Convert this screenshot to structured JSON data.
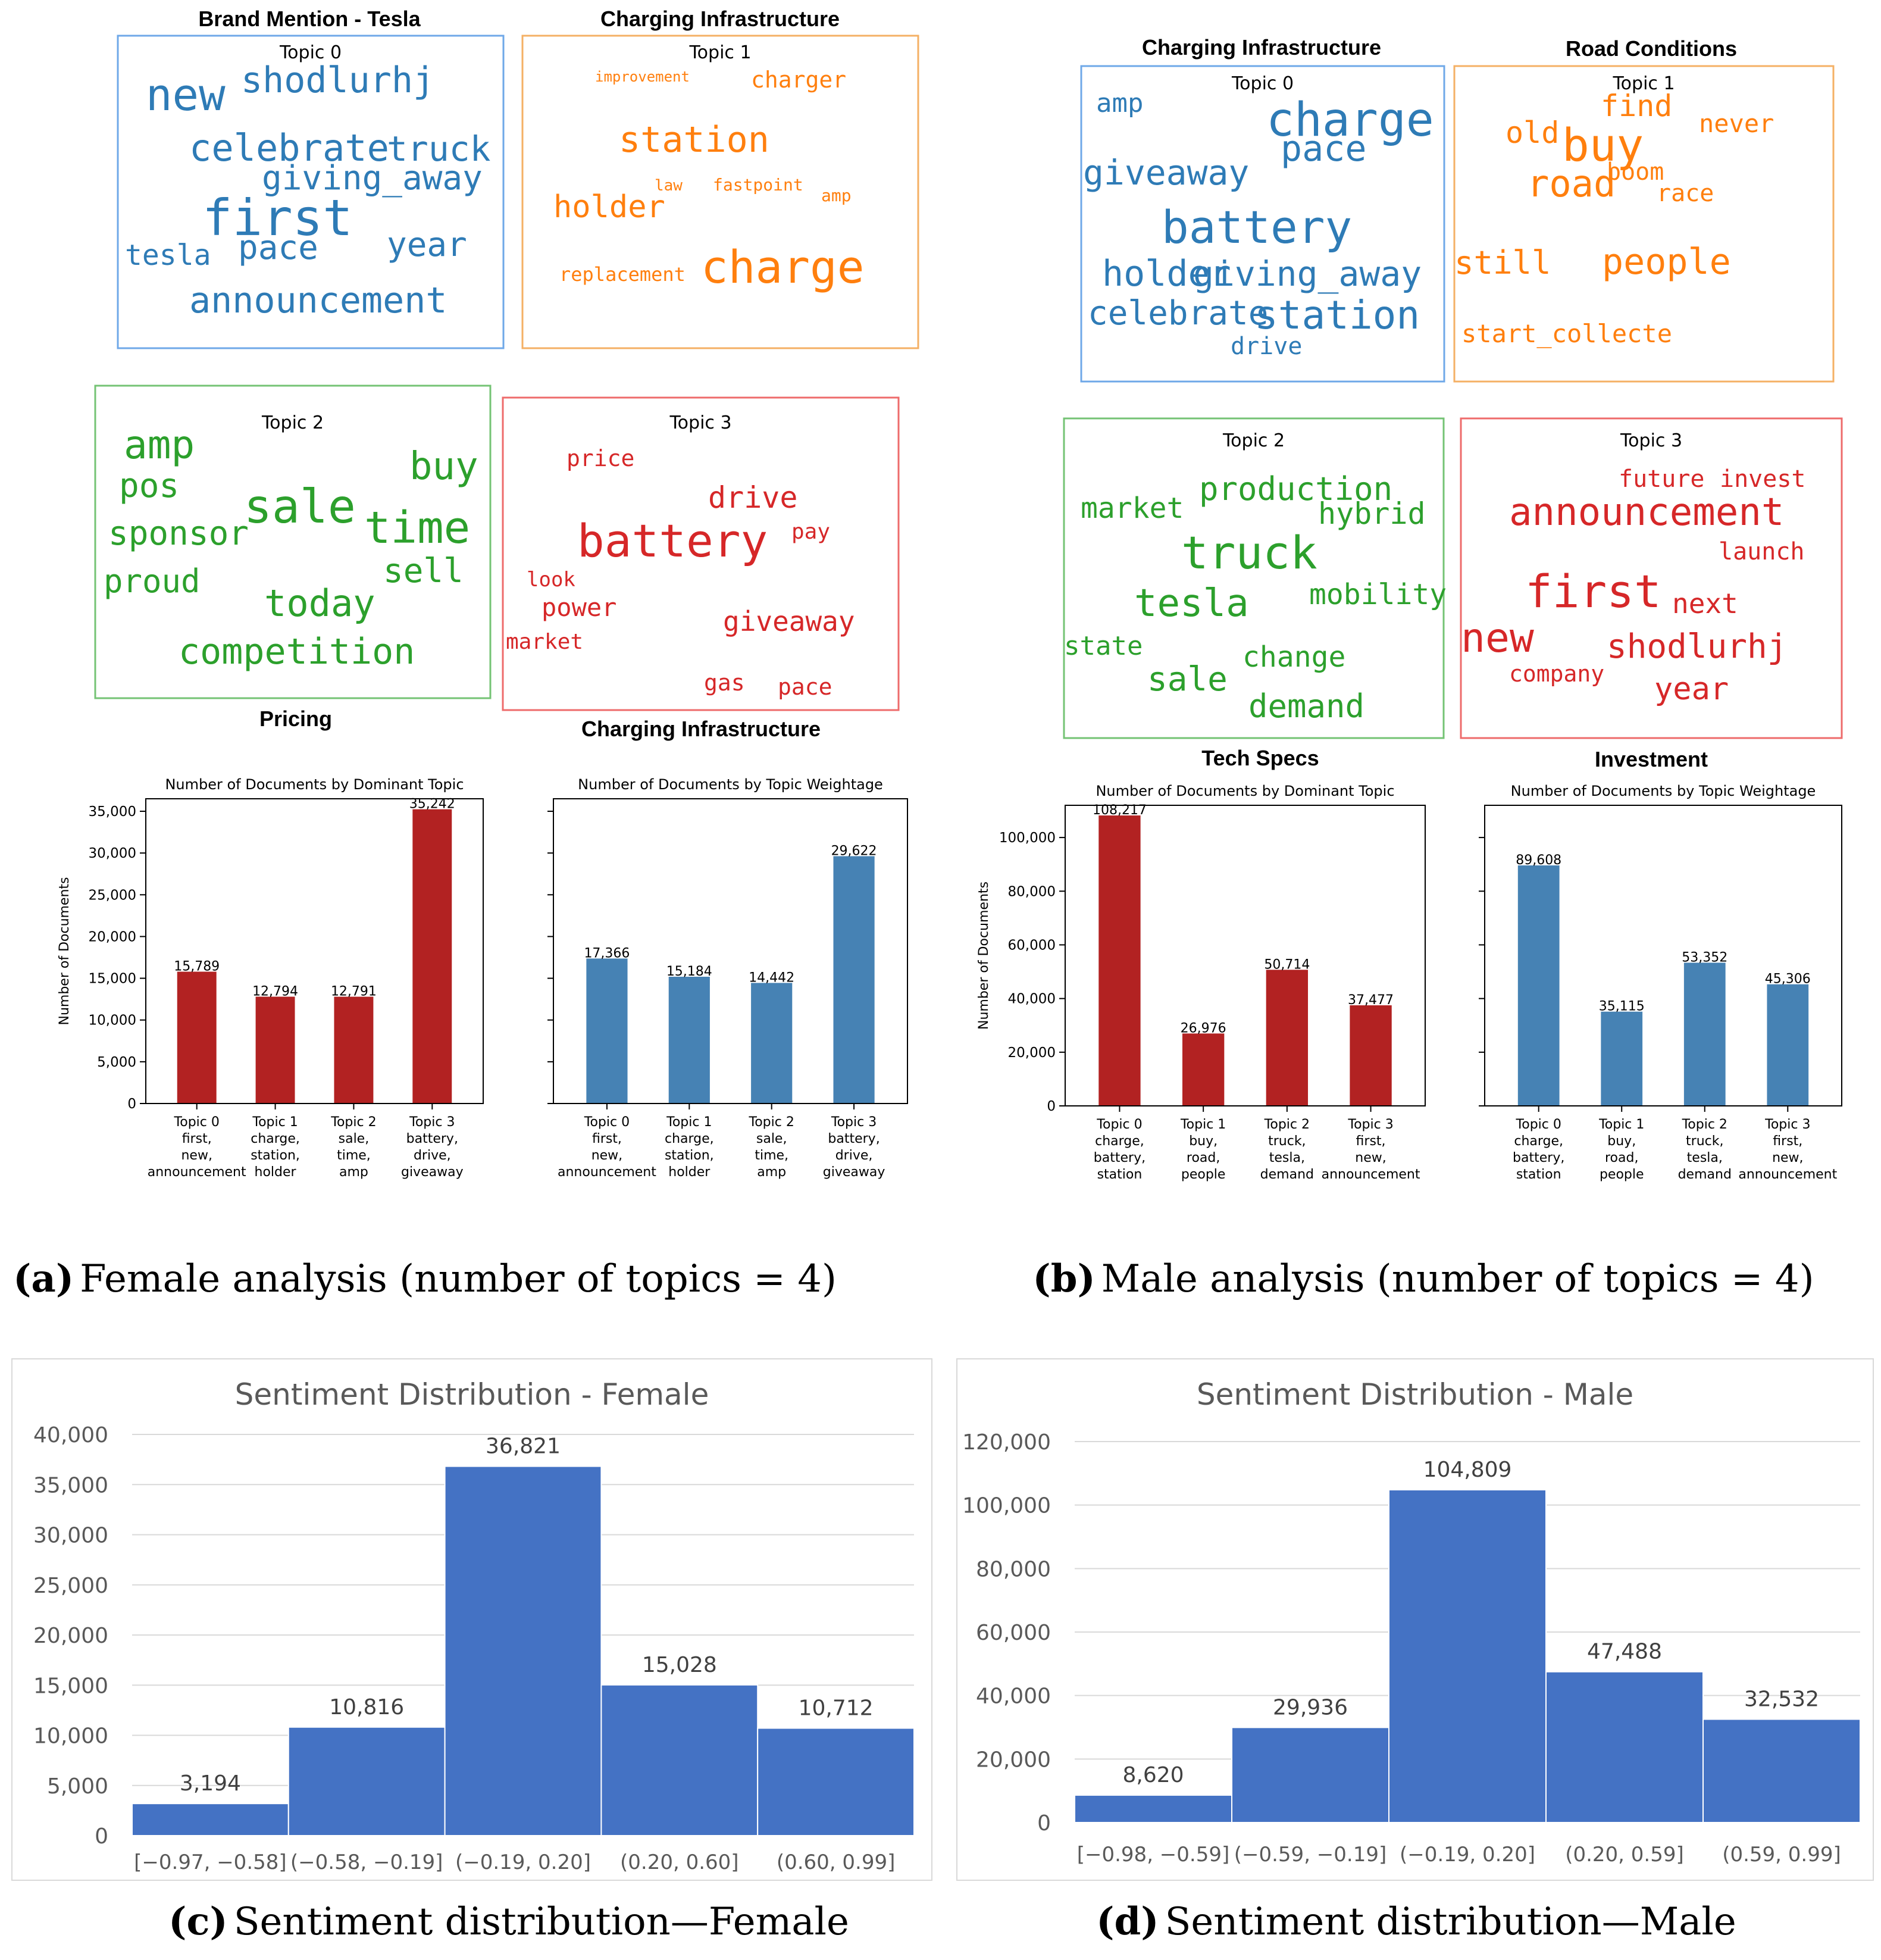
{
  "colors": {
    "blue": "#2e7bb6",
    "orange": "#ff7f0e",
    "green": "#2ca02c",
    "red": "#d62728",
    "bar_red": "#b22222",
    "bar_blue": "#4682b4",
    "excel_blue": "#4472c4",
    "excel_text": "#595959",
    "box_blue": "#6fa8e8",
    "box_orange": "#f4b065",
    "box_green": "#74c374",
    "box_red": "#ee6b6b"
  },
  "female": {
    "wordclouds": [
      {
        "title": "Brand Mention - Tesla",
        "topic": "Topic 0",
        "color": "blue",
        "words": [
          {
            "t": "new",
            "s": 74
          },
          {
            "t": "shodlurhj",
            "s": 60
          },
          {
            "t": "celebrate",
            "s": 62
          },
          {
            "t": "truck",
            "s": 58
          },
          {
            "t": "giving_away",
            "s": 56
          },
          {
            "t": "first",
            "s": 84
          },
          {
            "t": "tesla",
            "s": 48
          },
          {
            "t": "pace",
            "s": 56
          },
          {
            "t": "year",
            "s": 56
          },
          {
            "t": "announcement",
            "s": 60
          }
        ]
      },
      {
        "title": "Charging Infrastructure",
        "topic": "Topic 1",
        "color": "orange",
        "words": [
          {
            "t": "improvement",
            "s": 24
          },
          {
            "t": "charger",
            "s": 38
          },
          {
            "t": "station",
            "s": 60
          },
          {
            "t": "law",
            "s": 26
          },
          {
            "t": "fastpoint",
            "s": 28
          },
          {
            "t": "holder",
            "s": 52
          },
          {
            "t": "amp",
            "s": 28
          },
          {
            "t": "replacement",
            "s": 32
          },
          {
            "t": "charge",
            "s": 76
          }
        ]
      },
      {
        "title": "Pricing",
        "topic": "Topic 2",
        "color": "green",
        "words": [
          {
            "t": "amp",
            "s": 66
          },
          {
            "t": "pos",
            "s": 56
          },
          {
            "t": "sale",
            "s": 78
          },
          {
            "t": "buy",
            "s": 64
          },
          {
            "t": "sponsor",
            "s": 56
          },
          {
            "t": "time",
            "s": 74
          },
          {
            "t": "proud",
            "s": 54
          },
          {
            "t": "sell",
            "s": 56
          },
          {
            "t": "today",
            "s": 62
          },
          {
            "t": "competition",
            "s": 60
          }
        ]
      },
      {
        "title": "Charging Infrastructure",
        "topic": "Topic 3",
        "color": "red",
        "words": [
          {
            "t": "price",
            "s": 38
          },
          {
            "t": "drive",
            "s": 50
          },
          {
            "t": "battery",
            "s": 76
          },
          {
            "t": "pay",
            "s": 36
          },
          {
            "t": "look",
            "s": 34
          },
          {
            "t": "power",
            "s": 42
          },
          {
            "t": "giveaway",
            "s": 46
          },
          {
            "t": "market",
            "s": 36
          },
          {
            "t": "gas",
            "s": 38
          },
          {
            "t": "pace",
            "s": 38
          }
        ]
      }
    ],
    "bar_left": {
      "title": "Number of Documents by Dominant Topic",
      "ylabel": "Number of Documents",
      "ymax": 36500,
      "ticks": [
        0,
        5000,
        10000,
        15000,
        20000,
        25000,
        30000,
        35000
      ],
      "tick_labels": [
        "0",
        "5,000",
        "10,000",
        "15,000",
        "20,000",
        "25,000",
        "30,000",
        "35,000"
      ],
      "values": [
        15789,
        12794,
        12791,
        35242
      ],
      "value_labels": [
        "15,789",
        "12,794",
        "12,791",
        "35,242"
      ],
      "categories": [
        [
          "Topic 0",
          "first,",
          "new,",
          "announcement"
        ],
        [
          "Topic 1",
          "charge,",
          "station,",
          "holder"
        ],
        [
          "Topic 2",
          "sale,",
          "time,",
          "amp"
        ],
        [
          "Topic 3",
          "battery,",
          "drive,",
          "giveaway"
        ]
      ]
    },
    "bar_right": {
      "title": "Number of Documents by Topic Weightage",
      "ymax": 36500,
      "values": [
        17366,
        15184,
        14442,
        29622
      ],
      "value_labels": [
        "17,366",
        "15,184",
        "14,442",
        "29,622"
      ],
      "categories": [
        [
          "Topic 0",
          "first,",
          "new,",
          "announcement"
        ],
        [
          "Topic 1",
          "charge,",
          "station,",
          "holder"
        ],
        [
          "Topic 2",
          "sale,",
          "time,",
          "amp"
        ],
        [
          "Topic 3",
          "battery,",
          "drive,",
          "giveaway"
        ]
      ]
    },
    "caption_letter": "(a)",
    "caption": "Female analysis (number of topics = 4)"
  },
  "male": {
    "wordclouds": [
      {
        "title": "Charging Infrastructure",
        "topic": "Topic 0",
        "color": "blue",
        "words": [
          {
            "t": "amp",
            "s": 44
          },
          {
            "t": "charge",
            "s": 78
          },
          {
            "t": "pace",
            "s": 60
          },
          {
            "t": "giveaway",
            "s": 58
          },
          {
            "t": "battery",
            "s": 76
          },
          {
            "t": "holder",
            "s": 60
          },
          {
            "t": "giving_away",
            "s": 58
          },
          {
            "t": "celebrate",
            "s": 56
          },
          {
            "t": "station",
            "s": 66
          },
          {
            "t": "drive",
            "s": 40
          }
        ]
      },
      {
        "title": "Road Conditions",
        "topic": "Topic 1",
        "color": "orange",
        "words": [
          {
            "t": "find",
            "s": 50
          },
          {
            "t": "old",
            "s": 50
          },
          {
            "t": "buy",
            "s": 76
          },
          {
            "t": "never",
            "s": 42
          },
          {
            "t": "boom",
            "s": 40
          },
          {
            "t": "road",
            "s": 62
          },
          {
            "t": "race",
            "s": 40
          },
          {
            "t": "still",
            "s": 54
          },
          {
            "t": "people",
            "s": 60
          },
          {
            "t": "start_collecte",
            "s": 42
          }
        ]
      },
      {
        "title": "Tech Specs",
        "topic": "Topic 2",
        "color": "green",
        "words": [
          {
            "t": "market",
            "s": 48
          },
          {
            "t": "production",
            "s": 54
          },
          {
            "t": "hybrid",
            "s": 50
          },
          {
            "t": "truck",
            "s": 76
          },
          {
            "t": "tesla",
            "s": 64
          },
          {
            "t": "mobility",
            "s": 48
          },
          {
            "t": "state",
            "s": 44
          },
          {
            "t": "change",
            "s": 48
          },
          {
            "t": "sale",
            "s": 56
          },
          {
            "t": "demand",
            "s": 54
          }
        ]
      },
      {
        "title": "Investment",
        "topic": "Topic 3",
        "color": "red",
        "words": [
          {
            "t": "future",
            "s": 40
          },
          {
            "t": "invest",
            "s": 40
          },
          {
            "t": "announcement",
            "s": 64
          },
          {
            "t": "launch",
            "s": 40
          },
          {
            "t": "first",
            "s": 76
          },
          {
            "t": "next",
            "s": 46
          },
          {
            "t": "new",
            "s": 68
          },
          {
            "t": "shodlurhj",
            "s": 56
          },
          {
            "t": "company",
            "s": 38
          },
          {
            "t": "year",
            "s": 52
          }
        ]
      }
    ],
    "bar_left": {
      "title": "Number of Documents by Dominant Topic",
      "ylabel": "Number of Documents",
      "ymax": 112000,
      "ticks": [
        0,
        20000,
        40000,
        60000,
        80000,
        100000
      ],
      "tick_labels": [
        "0",
        "20,000",
        "40,000",
        "60,000",
        "80,000",
        "100,000"
      ],
      "values": [
        108217,
        26976,
        50714,
        37477
      ],
      "value_labels": [
        "108,217",
        "26,976",
        "50,714",
        "37,477"
      ],
      "categories": [
        [
          "Topic 0",
          "charge,",
          "battery,",
          "station"
        ],
        [
          "Topic 1",
          "buy,",
          "road,",
          "people"
        ],
        [
          "Topic 2",
          "truck,",
          "tesla,",
          "demand"
        ],
        [
          "Topic 3",
          "first,",
          "new,",
          "announcement"
        ]
      ]
    },
    "bar_right": {
      "title": "Number of Documents by Topic Weightage",
      "ymax": 112000,
      "values": [
        89608,
        35115,
        53352,
        45306
      ],
      "value_labels": [
        "89,608",
        "35,115",
        "53,352",
        "45,306"
      ],
      "categories": [
        [
          "Topic 0",
          "charge,",
          "battery,",
          "station"
        ],
        [
          "Topic 1",
          "buy,",
          "road,",
          "people"
        ],
        [
          "Topic 2",
          "truck,",
          "tesla,",
          "demand"
        ],
        [
          "Topic 3",
          "first,",
          "new,",
          "announcement"
        ]
      ]
    },
    "caption_letter": "(b)",
    "caption": "Male analysis (number of topics = 4)"
  },
  "chart_data": [
    {
      "type": "bar",
      "title": "Number of Documents by Dominant Topic",
      "panel": "Female",
      "ylabel": "Number of Documents",
      "categories": [
        "Topic 0 first, new, announcement",
        "Topic 1 charge, station, holder",
        "Topic 2 sale, time, amp",
        "Topic 3 battery, drive, giveaway"
      ],
      "values": [
        15789,
        12794,
        12791,
        35242
      ],
      "ylim": [
        0,
        36500
      ]
    },
    {
      "type": "bar",
      "title": "Number of Documents by Topic Weightage",
      "panel": "Female",
      "categories": [
        "Topic 0 first, new, announcement",
        "Topic 1 charge, station, holder",
        "Topic 2 sale, time, amp",
        "Topic 3 battery, drive, giveaway"
      ],
      "values": [
        17366,
        15184,
        14442,
        29622
      ],
      "ylim": [
        0,
        36500
      ]
    },
    {
      "type": "bar",
      "title": "Number of Documents by Dominant Topic",
      "panel": "Male",
      "ylabel": "Number of Documents",
      "categories": [
        "Topic 0 charge, battery, station",
        "Topic 1 buy, road, people",
        "Topic 2 truck, tesla, demand",
        "Topic 3 first, new, announcement"
      ],
      "values": [
        108217,
        26976,
        50714,
        37477
      ],
      "ylim": [
        0,
        112000
      ]
    },
    {
      "type": "bar",
      "title": "Number of Documents by Topic Weightage",
      "panel": "Male",
      "categories": [
        "Topic 0 charge, battery, station",
        "Topic 1 buy, road, people",
        "Topic 2 truck, tesla, demand",
        "Topic 3 first, new, announcement"
      ],
      "values": [
        89608,
        35115,
        53352,
        45306
      ],
      "ylim": [
        0,
        112000
      ]
    },
    {
      "type": "bar",
      "title": "Sentiment Distribution - Female",
      "categories": [
        "[−0.97, −0.58]",
        "(−0.58, −0.19]",
        "(−0.19, 0.20]",
        "(0.20, 0.60]",
        "(0.60, 0.99]"
      ],
      "values": [
        3194,
        10816,
        36821,
        15028,
        10712
      ],
      "ylim": [
        0,
        40000
      ]
    },
    {
      "type": "bar",
      "title": "Sentiment Distribution - Male",
      "categories": [
        "[−0.98, −0.59]",
        "(−0.59, −0.19]",
        "(−0.19, 0.20]",
        "(0.20, 0.59]",
        "(0.59, 0.99]"
      ],
      "values": [
        8620,
        29936,
        104809,
        47488,
        32532
      ],
      "ylim": [
        0,
        120000
      ]
    }
  ],
  "sentiment": {
    "female": {
      "title": "Sentiment Distribution - Female",
      "ymax": 40000,
      "ticks": [
        0,
        5000,
        10000,
        15000,
        20000,
        25000,
        30000,
        35000,
        40000
      ],
      "tick_labels": [
        "0",
        "5,000",
        "10,000",
        "15,000",
        "20,000",
        "25,000",
        "30,000",
        "35,000",
        "40,000"
      ],
      "values": [
        3194,
        10816,
        36821,
        15028,
        10712
      ],
      "value_labels": [
        "3,194",
        "10,816",
        "36,821",
        "15,028",
        "10,712"
      ],
      "categories": [
        "[−0.97, −0.58]",
        "(−0.58, −0.19]",
        "(−0.19, 0.20]",
        "(0.20, 0.60]",
        "(0.60, 0.99]"
      ],
      "caption_letter": "(c)",
      "caption": "Sentiment distribution—Female"
    },
    "male": {
      "title": "Sentiment Distribution - Male",
      "ymax": 120000,
      "ticks": [
        0,
        20000,
        40000,
        60000,
        80000,
        100000,
        120000
      ],
      "tick_labels": [
        "0",
        "20,000",
        "40,000",
        "60,000",
        "80,000",
        "100,000",
        "120,000"
      ],
      "values": [
        8620,
        29936,
        104809,
        47488,
        32532
      ],
      "value_labels": [
        "8,620",
        "29,936",
        "104,809",
        "47,488",
        "32,532"
      ],
      "categories": [
        "[−0.98, −0.59]",
        "(−0.59, −0.19]",
        "(−0.19, 0.20]",
        "(0.20, 0.59]",
        "(0.59, 0.99]"
      ],
      "caption_letter": "(d)",
      "caption": "Sentiment distribution—Male"
    }
  }
}
